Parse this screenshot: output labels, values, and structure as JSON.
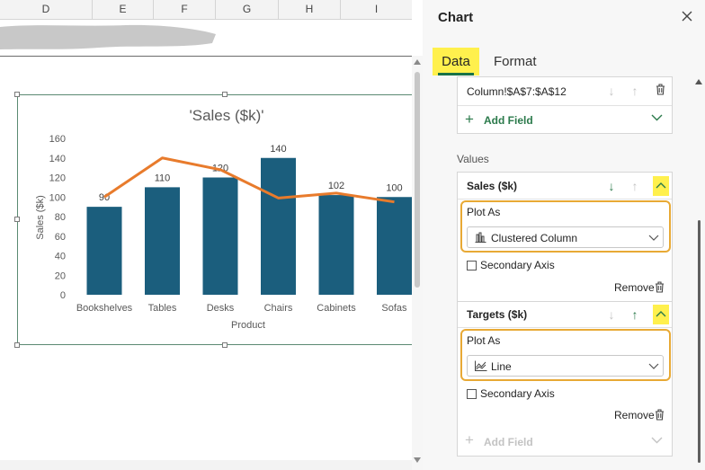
{
  "sheet": {
    "columns": [
      "D",
      "E",
      "F",
      "G",
      "H",
      "I"
    ]
  },
  "chart_data": {
    "type": "bar",
    "title": "'Sales ($k)'",
    "xlabel": "Product",
    "ylabel": "Sales ($k)",
    "categories": [
      "Bookshelves",
      "Tables",
      "Desks",
      "Chairs",
      "Cabinets",
      "Sofas"
    ],
    "series": [
      {
        "name": "Sales ($k)",
        "type": "bar",
        "values": [
          90,
          110,
          120,
          140,
          102,
          100
        ],
        "color": "#1b5e7d"
      },
      {
        "name": "Targets ($k)",
        "type": "line",
        "values": [
          100,
          140,
          128,
          99,
          104,
          95
        ],
        "color": "#e87b2c"
      }
    ],
    "ylim": [
      0,
      160
    ],
    "yticks": [
      0,
      20,
      40,
      60,
      80,
      100,
      120,
      140,
      160
    ],
    "data_labels": [
      "90",
      "110",
      "120",
      "140",
      "102",
      "100"
    ],
    "grid": false,
    "legend": "none"
  },
  "pane": {
    "title": "Chart",
    "close_icon": "close-icon",
    "tabs": [
      {
        "label": "Data",
        "active": true
      },
      {
        "label": "Format",
        "active": false
      }
    ],
    "axis_field": {
      "range": "Column!$A$7:$A$12",
      "add_field_label": "Add Field"
    },
    "values_heading": "Values",
    "series_cards": [
      {
        "name": "Sales ($k)",
        "plot_as_label": "Plot As",
        "plot_as_value": "Clustered Column",
        "plot_as_icon": "clustered-column-icon",
        "secondary_axis_label": "Secondary Axis",
        "secondary_axis_checked": false,
        "remove_label": "Remove"
      },
      {
        "name": "Targets ($k)",
        "plot_as_label": "Plot As",
        "plot_as_value": "Line",
        "plot_as_icon": "line-chart-icon",
        "secondary_axis_label": "Secondary Axis",
        "secondary_axis_checked": false,
        "remove_label": "Remove"
      }
    ],
    "add_field_bottom_label": "Add Field"
  },
  "colors": {
    "excel_green": "#197247",
    "highlight_yellow": "#fff04d",
    "callout_orange": "#e8a935",
    "bar_blue": "#1b5e7d",
    "line_orange": "#e87b2c"
  }
}
